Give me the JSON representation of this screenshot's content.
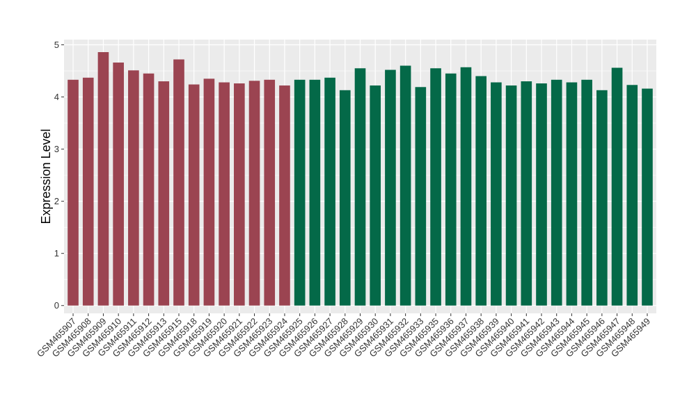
{
  "chart_data": {
    "type": "bar",
    "title": "",
    "xlabel": "",
    "ylabel": "Expression Level",
    "ylim": [
      -0.15,
      5.1
    ],
    "yticks": [
      0,
      1,
      2,
      3,
      4,
      5
    ],
    "grid": true,
    "legend": "none",
    "categories": [
      "GSM465907",
      "GSM465908",
      "GSM465909",
      "GSM465910",
      "GSM465911",
      "GSM465912",
      "GSM465913",
      "GSM465915",
      "GSM465918",
      "GSM465919",
      "GSM465920",
      "GSM465921",
      "GSM465922",
      "GSM465923",
      "GSM465924",
      "GSM465925",
      "GSM465926",
      "GSM465927",
      "GSM465928",
      "GSM465929",
      "GSM465930",
      "GSM465931",
      "GSM465932",
      "GSM465933",
      "GSM465935",
      "GSM465936",
      "GSM465937",
      "GSM465938",
      "GSM465939",
      "GSM465940",
      "GSM465941",
      "GSM465942",
      "GSM465943",
      "GSM465944",
      "GSM465945",
      "GSM465946",
      "GSM465947",
      "GSM465948",
      "GSM465949"
    ],
    "values": [
      4.33,
      4.37,
      4.86,
      4.66,
      4.51,
      4.45,
      4.3,
      4.72,
      4.24,
      4.35,
      4.28,
      4.26,
      4.31,
      4.33,
      4.22,
      4.33,
      4.33,
      4.37,
      4.13,
      4.55,
      4.22,
      4.52,
      4.6,
      4.19,
      4.55,
      4.45,
      4.57,
      4.4,
      4.28,
      4.22,
      4.3,
      4.26,
      4.33,
      4.28,
      4.33,
      4.13,
      4.56,
      4.23,
      4.16
    ],
    "groups": [
      0,
      0,
      0,
      0,
      0,
      0,
      0,
      0,
      0,
      0,
      0,
      0,
      0,
      0,
      0,
      1,
      1,
      1,
      1,
      1,
      1,
      1,
      1,
      1,
      1,
      1,
      1,
      1,
      1,
      1,
      1,
      1,
      1,
      1,
      1,
      1,
      1,
      1,
      1
    ],
    "colors": [
      "#9B4451",
      "#046948"
    ],
    "panel_background": "#EBEBEB",
    "gridline_color": "#FFFFFF"
  }
}
